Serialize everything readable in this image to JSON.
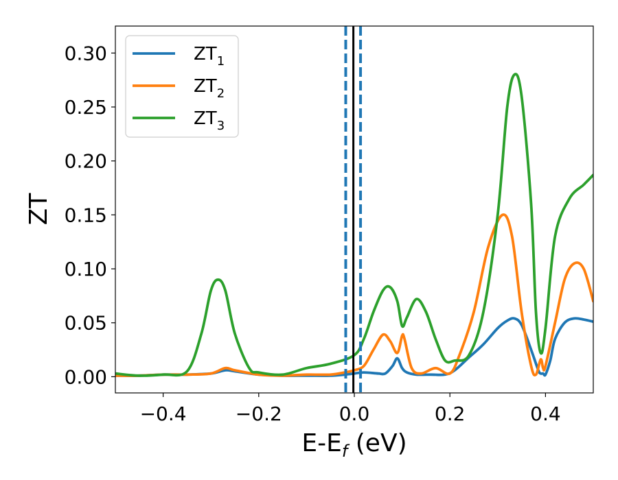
{
  "chart_data": {
    "type": "line",
    "xlabel_main": "E-E",
    "xlabel_sub": "f",
    "xlabel_unit": " (eV)",
    "ylabel": "ZT",
    "xlim": [
      -0.5,
      0.5
    ],
    "ylim": [
      -0.015,
      0.325
    ],
    "xticks": [
      -0.4,
      -0.2,
      0.0,
      0.2,
      0.4
    ],
    "xtick_labels": [
      "−0.4",
      "−0.2",
      "0.0",
      "0.2",
      "0.4"
    ],
    "yticks": [
      0.0,
      0.05,
      0.1,
      0.15,
      0.2,
      0.25,
      0.3
    ],
    "ytick_labels": [
      "0.00",
      "0.05",
      "0.10",
      "0.15",
      "0.20",
      "0.25",
      "0.30"
    ],
    "grid": false,
    "legend_position": "top-left",
    "vlines": [
      {
        "x": -0.018,
        "style": "dashed",
        "color": "#1f77b4"
      },
      {
        "x": -0.002,
        "style": "solid",
        "color": "#000000"
      },
      {
        "x": 0.013,
        "style": "dashed",
        "color": "#1f77b4"
      }
    ],
    "series": [
      {
        "name": "ZT",
        "sub": "1",
        "color": "#1f77b4",
        "points": [
          [
            -0.5,
            0.001
          ],
          [
            -0.45,
            0.001
          ],
          [
            -0.4,
            0.002
          ],
          [
            -0.35,
            0.002
          ],
          [
            -0.3,
            0.003
          ],
          [
            -0.27,
            0.006
          ],
          [
            -0.25,
            0.005
          ],
          [
            -0.2,
            0.002
          ],
          [
            -0.15,
            0.001
          ],
          [
            -0.1,
            0.001
          ],
          [
            -0.05,
            0.001
          ],
          [
            -0.02,
            0.002
          ],
          [
            0.0,
            0.003
          ],
          [
            0.02,
            0.004
          ],
          [
            0.05,
            0.003
          ],
          [
            0.065,
            0.003
          ],
          [
            0.08,
            0.01
          ],
          [
            0.09,
            0.017
          ],
          [
            0.1,
            0.008
          ],
          [
            0.11,
            0.004
          ],
          [
            0.13,
            0.002
          ],
          [
            0.16,
            0.002
          ],
          [
            0.19,
            0.002
          ],
          [
            0.21,
            0.006
          ],
          [
            0.24,
            0.018
          ],
          [
            0.27,
            0.03
          ],
          [
            0.3,
            0.045
          ],
          [
            0.32,
            0.052
          ],
          [
            0.335,
            0.054
          ],
          [
            0.35,
            0.048
          ],
          [
            0.37,
            0.025
          ],
          [
            0.385,
            0.006
          ],
          [
            0.39,
            0.003
          ],
          [
            0.395,
            0.003
          ],
          [
            0.4,
            0.002
          ],
          [
            0.41,
            0.015
          ],
          [
            0.42,
            0.035
          ],
          [
            0.44,
            0.05
          ],
          [
            0.46,
            0.054
          ],
          [
            0.48,
            0.053
          ],
          [
            0.5,
            0.051
          ]
        ]
      },
      {
        "name": "ZT",
        "sub": "2",
        "color": "#ff7f0e",
        "points": [
          [
            -0.5,
            0.001
          ],
          [
            -0.45,
            0.001
          ],
          [
            -0.4,
            0.002
          ],
          [
            -0.35,
            0.002
          ],
          [
            -0.3,
            0.003
          ],
          [
            -0.27,
            0.008
          ],
          [
            -0.25,
            0.006
          ],
          [
            -0.2,
            0.002
          ],
          [
            -0.15,
            0.001
          ],
          [
            -0.1,
            0.002
          ],
          [
            -0.05,
            0.002
          ],
          [
            -0.02,
            0.004
          ],
          [
            0.0,
            0.006
          ],
          [
            0.02,
            0.01
          ],
          [
            0.04,
            0.025
          ],
          [
            0.06,
            0.039
          ],
          [
            0.075,
            0.033
          ],
          [
            0.09,
            0.022
          ],
          [
            0.1,
            0.038
          ],
          [
            0.105,
            0.035
          ],
          [
            0.12,
            0.008
          ],
          [
            0.14,
            0.003
          ],
          [
            0.17,
            0.008
          ],
          [
            0.2,
            0.003
          ],
          [
            0.22,
            0.02
          ],
          [
            0.25,
            0.06
          ],
          [
            0.28,
            0.12
          ],
          [
            0.31,
            0.15
          ],
          [
            0.33,
            0.13
          ],
          [
            0.35,
            0.06
          ],
          [
            0.37,
            0.01
          ],
          [
            0.38,
            0.002
          ],
          [
            0.39,
            0.016
          ],
          [
            0.395,
            0.008
          ],
          [
            0.4,
            0.01
          ],
          [
            0.42,
            0.05
          ],
          [
            0.44,
            0.09
          ],
          [
            0.46,
            0.105
          ],
          [
            0.48,
            0.1
          ],
          [
            0.5,
            0.07
          ]
        ]
      },
      {
        "name": "ZT",
        "sub": "3",
        "color": "#2ca02c",
        "points": [
          [
            -0.5,
            0.003
          ],
          [
            -0.45,
            0.001
          ],
          [
            -0.4,
            0.002
          ],
          [
            -0.35,
            0.005
          ],
          [
            -0.32,
            0.04
          ],
          [
            -0.3,
            0.08
          ],
          [
            -0.285,
            0.09
          ],
          [
            -0.27,
            0.08
          ],
          [
            -0.25,
            0.04
          ],
          [
            -0.22,
            0.008
          ],
          [
            -0.2,
            0.004
          ],
          [
            -0.15,
            0.002
          ],
          [
            -0.1,
            0.008
          ],
          [
            -0.05,
            0.012
          ],
          [
            0.0,
            0.02
          ],
          [
            0.02,
            0.035
          ],
          [
            0.04,
            0.06
          ],
          [
            0.06,
            0.08
          ],
          [
            0.075,
            0.083
          ],
          [
            0.09,
            0.07
          ],
          [
            0.1,
            0.047
          ],
          [
            0.11,
            0.055
          ],
          [
            0.13,
            0.072
          ],
          [
            0.15,
            0.06
          ],
          [
            0.17,
            0.035
          ],
          [
            0.19,
            0.015
          ],
          [
            0.21,
            0.015
          ],
          [
            0.24,
            0.02
          ],
          [
            0.27,
            0.06
          ],
          [
            0.3,
            0.15
          ],
          [
            0.32,
            0.25
          ],
          [
            0.335,
            0.28
          ],
          [
            0.35,
            0.26
          ],
          [
            0.37,
            0.16
          ],
          [
            0.38,
            0.06
          ],
          [
            0.39,
            0.022
          ],
          [
            0.4,
            0.045
          ],
          [
            0.42,
            0.13
          ],
          [
            0.45,
            0.165
          ],
          [
            0.48,
            0.178
          ],
          [
            0.5,
            0.187
          ]
        ]
      }
    ]
  }
}
